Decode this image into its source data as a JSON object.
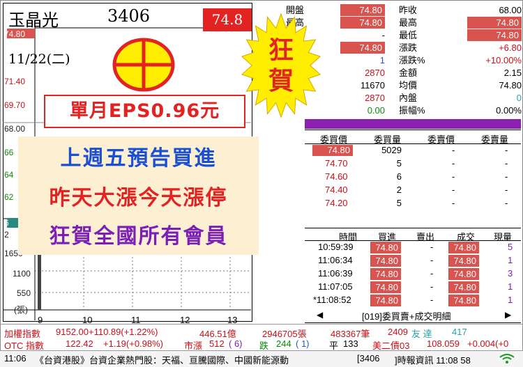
{
  "stock": {
    "name": "玉晶光",
    "code": "3406",
    "price": "74.8",
    "date": "11/22(二)"
  },
  "chart": {
    "price_ticks": [
      "74.80",
      "71.40",
      "69.70",
      "68.00",
      "66",
      "64",
      "62",
      "6"
    ],
    "volume_ticks": [
      "2",
      "1650",
      "1100",
      "550",
      "(張)"
    ],
    "x_ticks": [
      "9",
      "10",
      "11",
      "12",
      "13"
    ]
  },
  "overlay": {
    "eps": "單月EPS0.96元",
    "lines": [
      "上週五預告買進",
      "昨天大漲今天漲停",
      "狂賀全國所有會員"
    ],
    "star_text": "狂賀"
  },
  "quote": {
    "left": [
      {
        "label": "開盤",
        "value": "74.80",
        "red": true
      },
      {
        "label": "最高",
        "value": "74.80",
        "red": true
      },
      {
        "label": "",
        "value": "-",
        "red": false
      },
      {
        "label": "",
        "value": "74.80",
        "red": true
      },
      {
        "label": "",
        "value": "1",
        "red": false
      },
      {
        "label": "",
        "value": "2870",
        "red": false
      },
      {
        "label": "",
        "value": "11670",
        "red": false
      },
      {
        "label": "",
        "value": "2870",
        "red": false
      },
      {
        "label": "",
        "value": "0.00",
        "red": false
      }
    ],
    "right": [
      {
        "label": "昨收",
        "value": "68.00",
        "red": false
      },
      {
        "label": "最高",
        "value": "74.80",
        "red": true
      },
      {
        "label": "最低",
        "value": "74.80",
        "red": true
      },
      {
        "label": "漲跌",
        "value": "+6.80",
        "red": false
      },
      {
        "label": "漲跌%",
        "value": "+10.00%",
        "red": false
      },
      {
        "label": "金額",
        "value": "2.15",
        "red": false
      },
      {
        "label": "均價",
        "value": "74.80",
        "red": false
      },
      {
        "label": "內盤",
        "value": "0",
        "red": false
      },
      {
        "label": "振幅%",
        "value": "0.00%",
        "red": false
      }
    ]
  },
  "orderbook": {
    "headers": [
      "委買價",
      "委買量",
      "委賣價",
      "委賣量"
    ],
    "rows": [
      {
        "bid": "74.80",
        "qty": "5029",
        "ask": "-",
        "aqty": "-"
      },
      {
        "bid": "74.70",
        "qty": "5",
        "ask": "-",
        "aqty": "-"
      },
      {
        "bid": "74.60",
        "qty": "6",
        "ask": "-",
        "aqty": "-"
      },
      {
        "bid": "74.40",
        "qty": "2",
        "ask": "-",
        "aqty": "-"
      },
      {
        "bid": "74.20",
        "qty": "5",
        "ask": "-",
        "aqty": "-"
      }
    ]
  },
  "trades": {
    "headers": [
      "時間",
      "買進",
      "賣出",
      "成交",
      "現量"
    ],
    "rows": [
      {
        "time": "10:59:39",
        "buy": "74.80",
        "sell": "-",
        "deal": "74.80",
        "qty": "5"
      },
      {
        "time": "11:06:34",
        "buy": "74.80",
        "sell": "-",
        "deal": "74.80",
        "qty": "1"
      },
      {
        "time": "11:06:39",
        "buy": "74.80",
        "sell": "-",
        "deal": "74.80",
        "qty": "3"
      },
      {
        "time": "11:07:05",
        "buy": "74.80",
        "sell": "-",
        "deal": "74.80",
        "qty": "1"
      },
      {
        "time": "*11:08:52",
        "buy": "74.80",
        "sell": "-",
        "deal": "74.80",
        "qty": "1"
      }
    ],
    "footer_button": "[019]委買賣+成交明細"
  },
  "market": {
    "line1": {
      "label": "加權指數",
      "value": "9152.00+110.89(+1.22%)",
      "amount": "446.51億",
      "vol": "2946705張",
      "vol2": "483367筆",
      "up": "2409",
      "up_label": "友 達",
      "down": "417"
    },
    "line2": {
      "label": "OTC 指數",
      "value": "122.42",
      "change": "+1.19(+0.98%)",
      "market_label": "市漲",
      "up": "512",
      "up_lim": "( 6)",
      "fall_label": "跌",
      "fall": "244",
      "fall_lim": "( 1)",
      "flat_label": "平",
      "flat": "133",
      "bond": "美二債03",
      "bond_val": "108.059",
      "bond_chg": "+0.004(+0"
    }
  },
  "status": {
    "time": "11:06",
    "news": "《台資港股》台資企業熱門股：天福、亘騰國際、中國新能源動",
    "code": "[3406",
    "source": "]時報資訊 11:08 58"
  },
  "colors": {
    "red": "#e32222",
    "purple": "#8b21b0",
    "yellow": "#ffee00",
    "eps_red": "#e32222"
  }
}
